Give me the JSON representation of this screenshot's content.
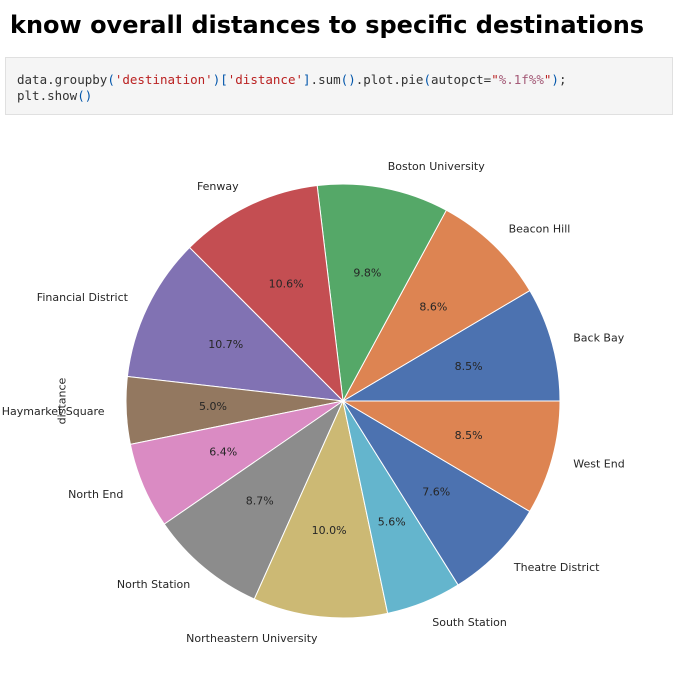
{
  "header": {
    "title": "know overall distances to specific destinations"
  },
  "code": {
    "line1": "data.groupby('destination')['distance'].sum().plot.pie(autopct=\"%.1f%%\");",
    "line2": "plt.show()"
  },
  "chart_data": {
    "type": "pie",
    "ylabel": "distance",
    "autopct_format": "%.1f%%",
    "start_angle_deg": 0,
    "direction": "counterclockwise",
    "edgecolor": "#ffffff",
    "slices": [
      {
        "label": "Back Bay",
        "value": 8.5,
        "pct_label": "8.5%",
        "color": "#4c72b0"
      },
      {
        "label": "Beacon Hill",
        "value": 8.6,
        "pct_label": "8.6%",
        "color": "#dd8452"
      },
      {
        "label": "Boston University",
        "value": 9.8,
        "pct_label": "9.8%",
        "color": "#55a868"
      },
      {
        "label": "Fenway",
        "value": 10.6,
        "pct_label": "10.6%",
        "color": "#c44e52"
      },
      {
        "label": "Financial District",
        "value": 10.7,
        "pct_label": "10.7%",
        "color": "#8172b3"
      },
      {
        "label": "Haymarket Square",
        "value": 5.0,
        "pct_label": "5.0%",
        "color": "#937860"
      },
      {
        "label": "North End",
        "value": 6.4,
        "pct_label": "6.4%",
        "color": "#da8bc3"
      },
      {
        "label": "North Station",
        "value": 8.7,
        "pct_label": "8.7%",
        "color": "#8c8c8c"
      },
      {
        "label": "Northeastern University",
        "value": 10.0,
        "pct_label": "10.0%",
        "color": "#ccb974"
      },
      {
        "label": "South Station",
        "value": 5.6,
        "pct_label": "5.6%",
        "color": "#64b5cd"
      },
      {
        "label": "Theatre District",
        "value": 7.6,
        "pct_label": "7.6%",
        "color": "#4c72b0"
      },
      {
        "label": "West End",
        "value": 8.5,
        "pct_label": "8.5%",
        "color": "#dd8452"
      }
    ]
  }
}
